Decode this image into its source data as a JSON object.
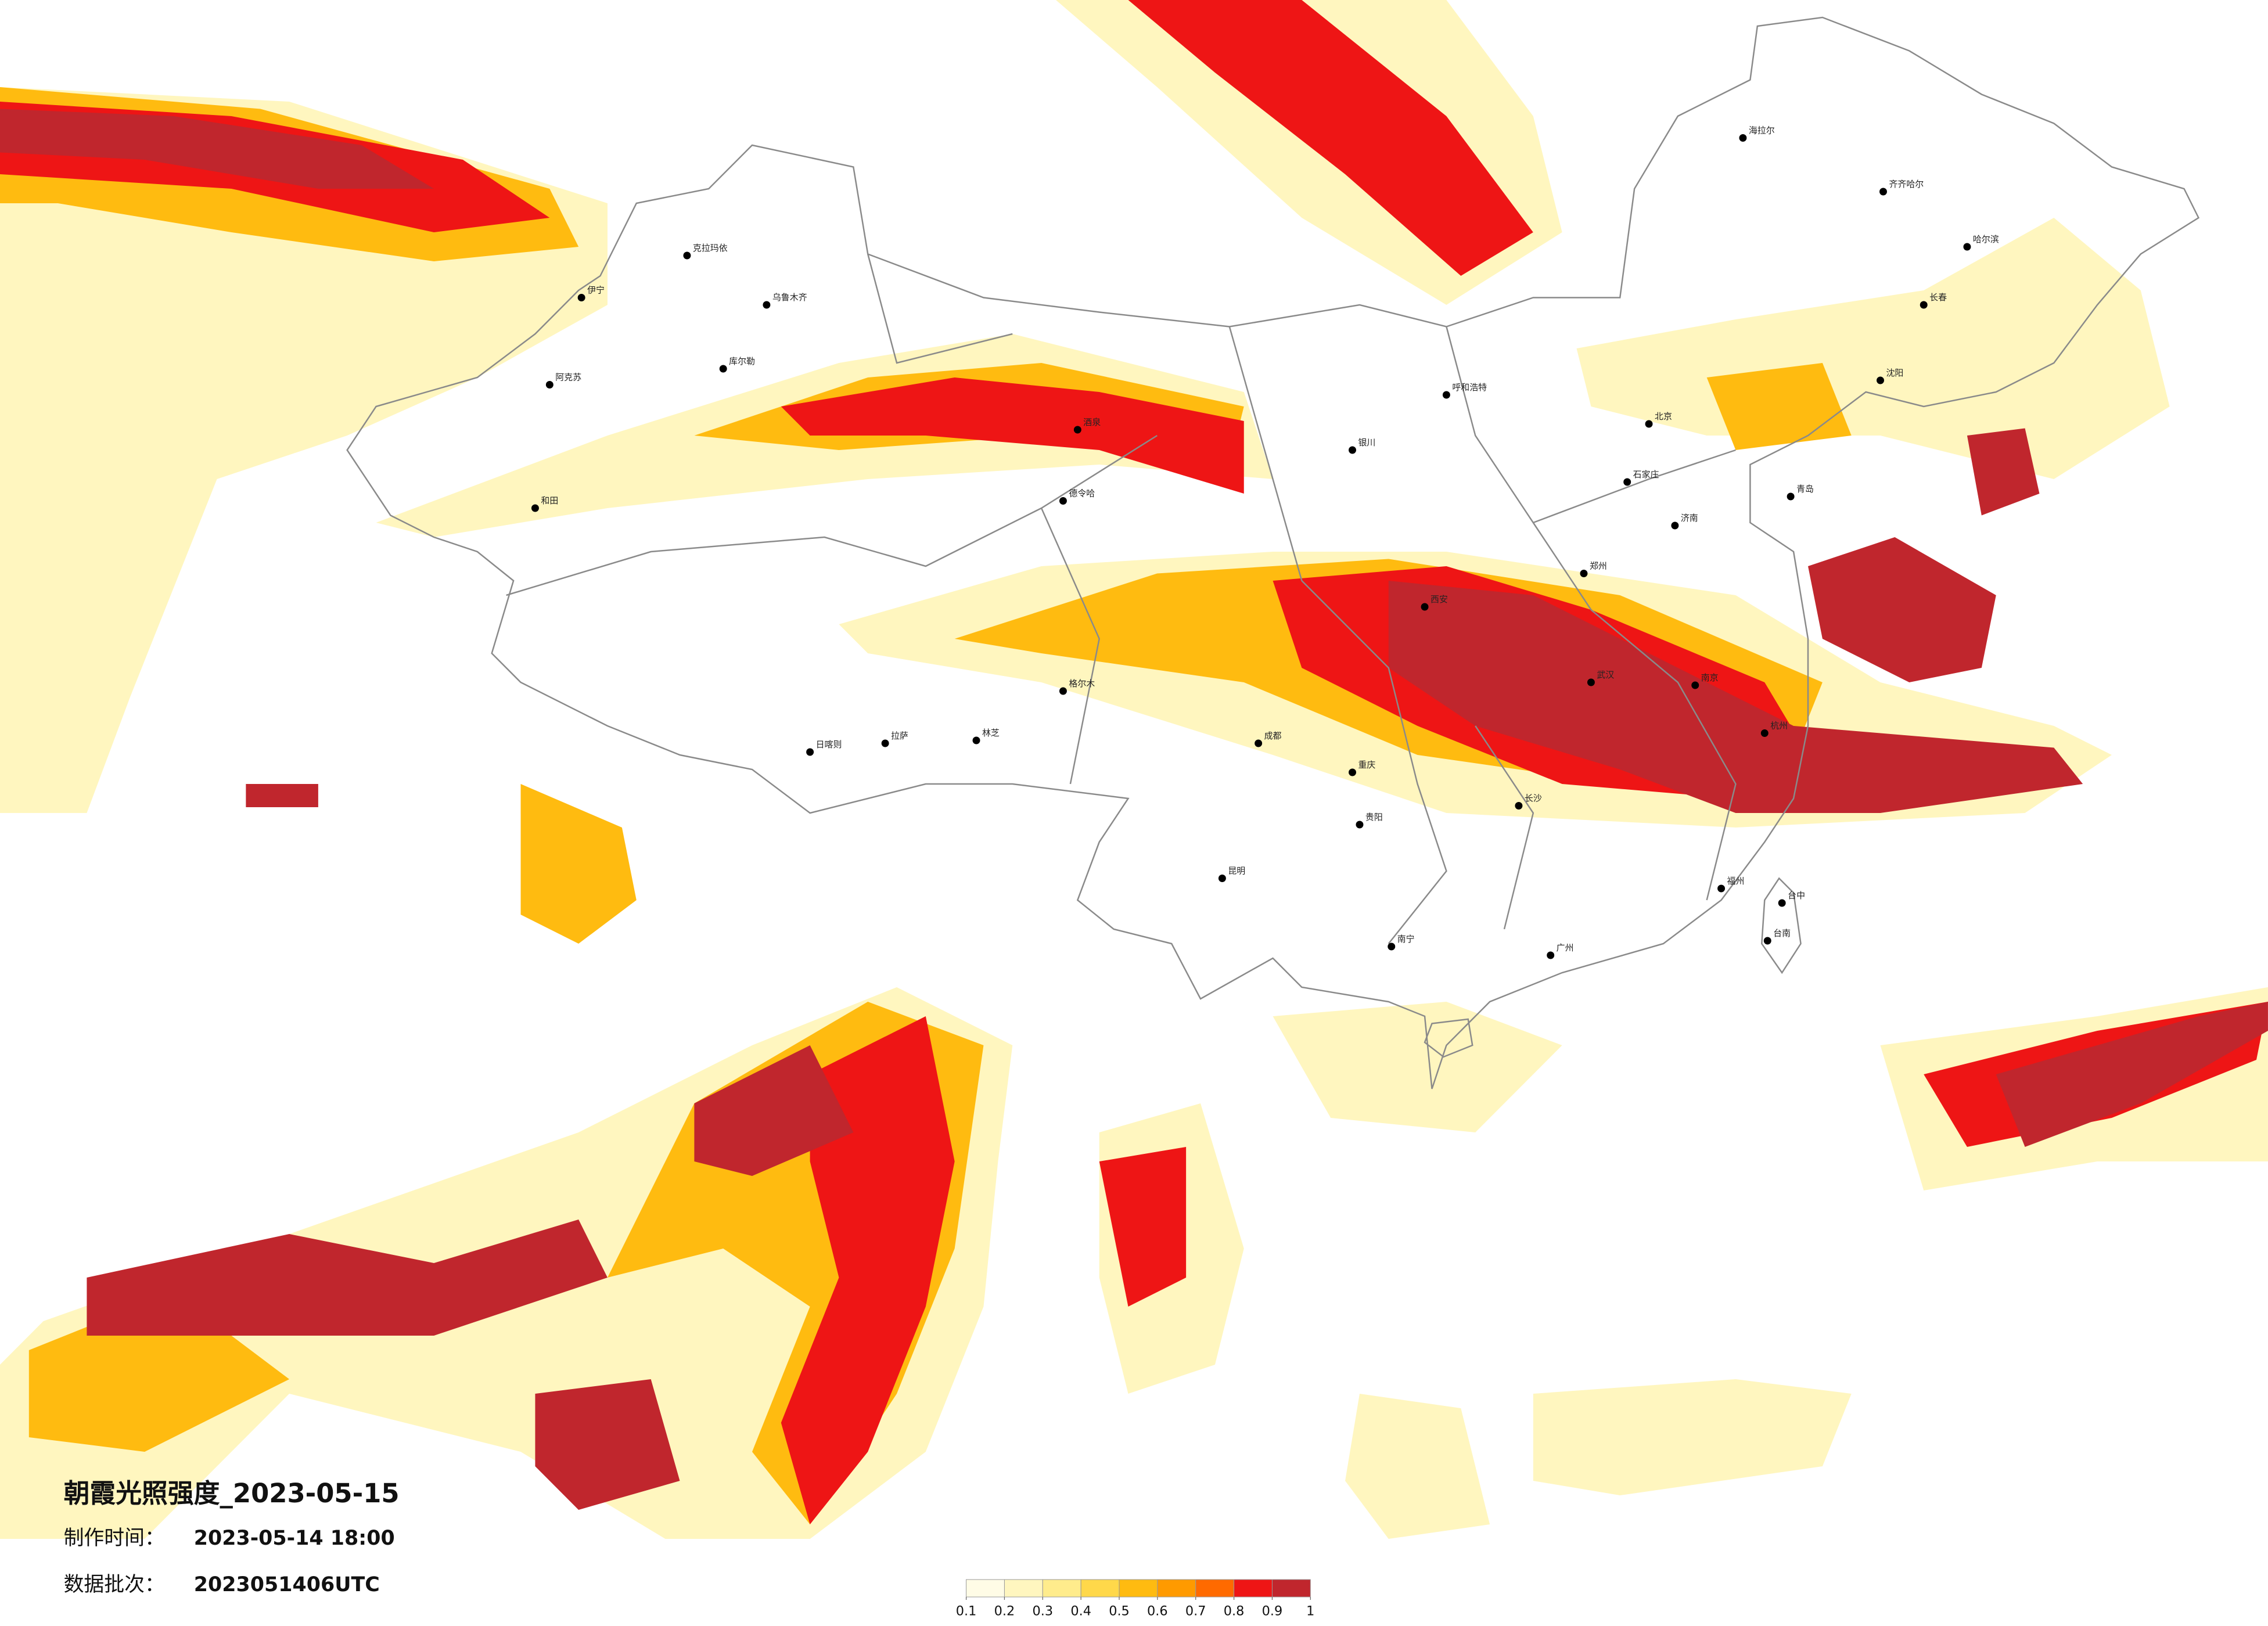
{
  "map": {
    "title": "朝霞光照强度_2023-05-15",
    "production_time_label": "制作时间：",
    "production_time": "2023-05-14 18:00",
    "batch_label": "数据批次：",
    "batch": "2023051406UTC",
    "colorbar": {
      "ticks": [
        0.1,
        0.2,
        0.3,
        0.4,
        0.5,
        0.6,
        0.7,
        0.8,
        0.9,
        1
      ],
      "colors": [
        "#fffce6",
        "#fff6bf",
        "#ffec8c",
        "#ffd84a",
        "#ffbb10",
        "#ff9a00",
        "#ff6a00",
        "#ee1515",
        "#c0262d"
      ]
    },
    "cities": [
      "克拉玛依",
      "乌鲁木齐",
      "伊宁",
      "阿克苏",
      "库尔勒",
      "和田",
      "日喀则",
      "拉萨",
      "林芝",
      "德令哈",
      "格尔木",
      "酒泉",
      "银川",
      "呼和浩特",
      "海拉尔",
      "齐齐哈尔",
      "哈尔滨",
      "长春",
      "沈阳",
      "北京",
      "石家庄",
      "济南",
      "郑州",
      "西安",
      "成都",
      "重庆",
      "贵阳",
      "昆明",
      "南宁",
      "广州",
      "长沙",
      "武汉",
      "南京",
      "杭州",
      "福州",
      "台中",
      "台南",
      "青岛"
    ]
  }
}
